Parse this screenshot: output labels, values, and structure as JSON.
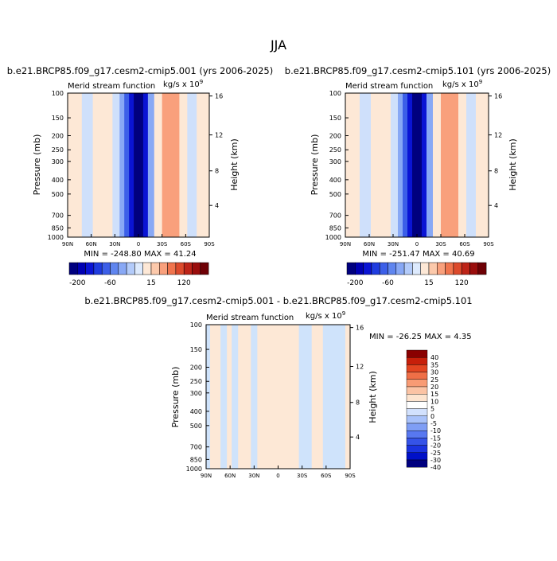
{
  "page": {
    "title": "JJA"
  },
  "chart_data": [
    {
      "type": "heatmap",
      "title": "b.e21.BRCP85.f09_g17.cesm2-cmip5.001 (yrs 2006-2025)",
      "left_label": "Merid stream function",
      "units_label": "kg/s x 10",
      "units_exp": "9",
      "ylabel": "Pressure (mb)",
      "y2label": "Height (km)",
      "x_ticks": [
        "90N",
        "60N",
        "30N",
        "0",
        "30S",
        "60S",
        "90S"
      ],
      "y_ticks": [
        "100",
        "150",
        "200",
        "250",
        "300",
        "400",
        "500",
        "700",
        "850",
        "1000"
      ],
      "y2_ticks": [
        "16",
        "12",
        "8",
        "4"
      ],
      "stats": {
        "min_label": "MIN = ",
        "min": "-248.80",
        "max_label": "MAX = ",
        "max": "41.24"
      },
      "cells": [
        {
          "x0": 90,
          "x1": 72,
          "v": 10
        },
        {
          "x0": 72,
          "x1": 58,
          "v": -10
        },
        {
          "x0": 58,
          "x1": 33,
          "v": 10
        },
        {
          "x0": 33,
          "x1": 24,
          "v": -10
        },
        {
          "x0": 24,
          "x1": 18,
          "v": -35
        },
        {
          "x0": 18,
          "x1": 12,
          "v": -80
        },
        {
          "x0": 12,
          "x1": 6,
          "v": -150
        },
        {
          "x0": 6,
          "x1": -6,
          "v": -230
        },
        {
          "x0": -6,
          "x1": -12,
          "v": -150
        },
        {
          "x0": -12,
          "x1": -20,
          "v": -35
        },
        {
          "x0": -20,
          "x1": -30,
          "v": 10
        },
        {
          "x0": -30,
          "x1": -52,
          "v": 35
        },
        {
          "x0": -52,
          "x1": -62,
          "v": 10
        },
        {
          "x0": -62,
          "x1": -74,
          "v": -10
        },
        {
          "x0": -74,
          "x1": -90,
          "v": 10
        }
      ]
    },
    {
      "type": "heatmap",
      "title": "b.e21.BRCP85.f09_g17.cesm2-cmip5.101 (yrs 2006-2025)",
      "left_label": "Merid stream function",
      "units_label": "kg/s x 10",
      "units_exp": "9",
      "ylabel": "Pressure (mb)",
      "y2label": "Height (km)",
      "x_ticks": [
        "90N",
        "60N",
        "30N",
        "0",
        "30S",
        "60S",
        "90S"
      ],
      "y_ticks": [
        "100",
        "150",
        "200",
        "250",
        "300",
        "400",
        "500",
        "700",
        "850",
        "1000"
      ],
      "y2_ticks": [
        "16",
        "12",
        "8",
        "4"
      ],
      "stats": {
        "min_label": "MIN = ",
        "min": "-251.47",
        "max_label": "MAX = ",
        "max": "40.69"
      },
      "cells": [
        {
          "x0": 90,
          "x1": 72,
          "v": 10
        },
        {
          "x0": 72,
          "x1": 58,
          "v": -10
        },
        {
          "x0": 58,
          "x1": 33,
          "v": 10
        },
        {
          "x0": 33,
          "x1": 24,
          "v": -10
        },
        {
          "x0": 24,
          "x1": 18,
          "v": -35
        },
        {
          "x0": 18,
          "x1": 12,
          "v": -80
        },
        {
          "x0": 12,
          "x1": 6,
          "v": -150
        },
        {
          "x0": 6,
          "x1": -6,
          "v": -230
        },
        {
          "x0": -6,
          "x1": -12,
          "v": -150
        },
        {
          "x0": -12,
          "x1": -20,
          "v": -35
        },
        {
          "x0": -20,
          "x1": -30,
          "v": 10
        },
        {
          "x0": -30,
          "x1": -52,
          "v": 35
        },
        {
          "x0": -52,
          "x1": -62,
          "v": 10
        },
        {
          "x0": -62,
          "x1": -74,
          "v": -10
        },
        {
          "x0": -74,
          "x1": -90,
          "v": 10
        }
      ]
    },
    {
      "type": "heatmap",
      "title": "b.e21.BRCP85.f09_g17.cesm2-cmip5.001 - b.e21.BRCP85.f09_g17.cesm2-cmip5.101",
      "left_label": "Merid stream function",
      "units_label": "kg/s x 10",
      "units_exp": "9",
      "ylabel": "Pressure (mb)",
      "y2label": "Height (km)",
      "x_ticks": [
        "90N",
        "60N",
        "30N",
        "0",
        "30S",
        "60S",
        "90S"
      ],
      "y_ticks": [
        "100",
        "150",
        "200",
        "250",
        "300",
        "400",
        "500",
        "700",
        "850",
        "1000"
      ],
      "y2_ticks": [
        "16",
        "12",
        "8",
        "4"
      ],
      "stats": {
        "min_label": "MIN = ",
        "min": "-26.25",
        "max_label": "MAX = ",
        "max": "4.35"
      },
      "cells": [
        {
          "x0": 90,
          "x1": 85,
          "v": -3
        },
        {
          "x0": 85,
          "x1": 72,
          "v": 2
        },
        {
          "x0": 72,
          "x1": 64,
          "v": -3
        },
        {
          "x0": 64,
          "x1": 58,
          "v": 2
        },
        {
          "x0": 58,
          "x1": 50,
          "v": -3
        },
        {
          "x0": 50,
          "x1": 34,
          "v": 2
        },
        {
          "x0": 34,
          "x1": 26,
          "v": -3
        },
        {
          "x0": 26,
          "x1": -26,
          "v": 2
        },
        {
          "x0": -26,
          "x1": -42,
          "v": -3
        },
        {
          "x0": -42,
          "x1": -56,
          "v": 2
        },
        {
          "x0": -56,
          "x1": -84,
          "v": -3
        },
        {
          "x0": -84,
          "x1": -90,
          "v": 2
        }
      ]
    }
  ],
  "colorbar_abs": {
    "colors": [
      "#00007f",
      "#0000b3",
      "#0a14d4",
      "#1f3cdf",
      "#3c5fe8",
      "#5f85ef",
      "#88a8f5",
      "#b3cbfa",
      "#ddeafd",
      "#fde8d6",
      "#fcc9ab",
      "#f9a07c",
      "#f0744d",
      "#dc4a2c",
      "#bd2418",
      "#9a0d0c",
      "#6e0005"
    ],
    "labels": [
      {
        "text": "-200",
        "at": 1.0
      },
      {
        "text": "-60",
        "at": 5.0
      },
      {
        "text": "15",
        "at": 10.0
      },
      {
        "text": "120",
        "at": 14.0
      }
    ]
  },
  "colorbar_diff": {
    "colors": [
      "#00007f",
      "#0010c8",
      "#1a33e0",
      "#3553e8",
      "#5878f0",
      "#7f9ef5",
      "#a9c2fa",
      "#d2e1fd",
      "#ffffff",
      "#fde4cf",
      "#fbc3a4",
      "#f89b74",
      "#ef6f47",
      "#e34521",
      "#c71f0a",
      "#8a0000"
    ],
    "labels": [
      "40",
      "35",
      "30",
      "25",
      "20",
      "15",
      "10",
      "5",
      "0",
      "-5",
      "-10",
      "-15",
      "-20",
      "-25",
      "-30",
      "-40"
    ]
  }
}
